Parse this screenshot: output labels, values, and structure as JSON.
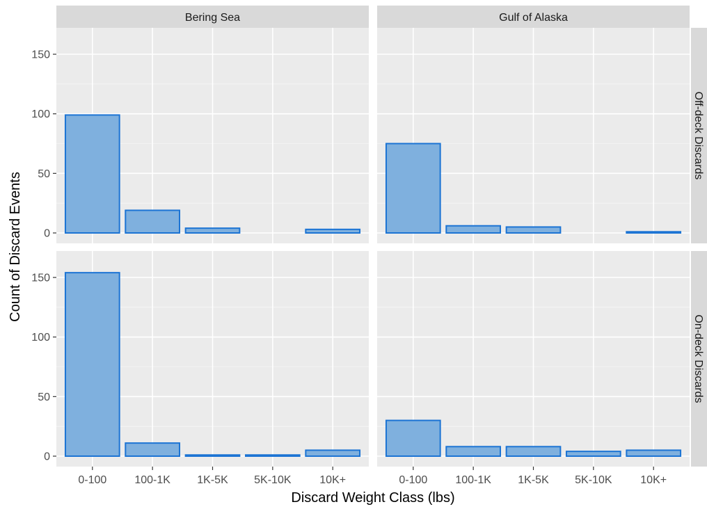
{
  "chart_data": {
    "type": "bar",
    "xlabel": "Discard Weight Class (lbs)",
    "ylabel": "Count of Discard Events",
    "categories": [
      "0-100",
      "100-1K",
      "1K-5K",
      "5K-10K",
      "10K+"
    ],
    "yticks": [
      "0",
      "50",
      "100",
      "150"
    ],
    "ylim": [
      0,
      160
    ],
    "grid": true,
    "col_facets": [
      "Bering Sea",
      "Gulf of Alaska"
    ],
    "row_facets": [
      "Off-deck Discards",
      "On-deck Discards"
    ],
    "panels": [
      {
        "col": "Bering Sea",
        "row": "Off-deck Discards",
        "values": [
          99,
          19,
          4,
          0,
          3
        ]
      },
      {
        "col": "Gulf of Alaska",
        "row": "Off-deck Discards",
        "values": [
          75,
          6,
          5,
          0,
          1
        ]
      },
      {
        "col": "Bering Sea",
        "row": "On-deck Discards",
        "values": [
          154,
          11,
          1,
          1,
          5
        ]
      },
      {
        "col": "Gulf of Alaska",
        "row": "On-deck Discards",
        "values": [
          30,
          8,
          8,
          4,
          5
        ]
      }
    ],
    "colors": {
      "bar_fill": "#7fb0de",
      "bar_stroke": "#1c74d4",
      "panel_bg": "#ebebeb",
      "strip_bg": "#d9d9d9",
      "grid": "#ffffff"
    }
  }
}
